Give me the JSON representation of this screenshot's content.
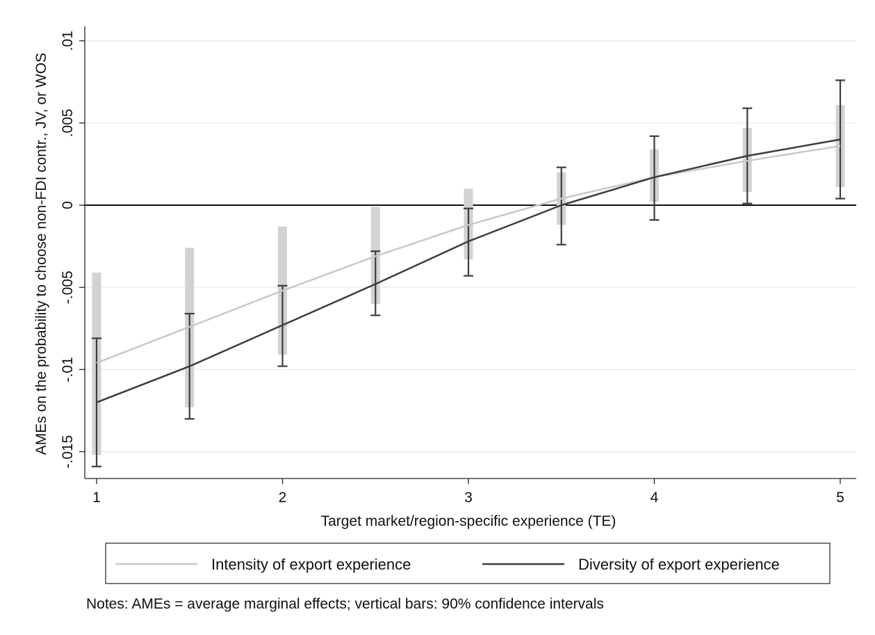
{
  "chart_data": {
    "type": "line",
    "xlabel": "Target market/region-specific experience (TE)",
    "ylabel": "AMEs on the probability to choose non-FDI contr., JV, or WOS",
    "x": [
      1,
      1.5,
      2,
      2.5,
      3,
      3.5,
      4,
      4.5,
      5
    ],
    "xticks": [
      1,
      2,
      3,
      4,
      5
    ],
    "xtick_labels": [
      "1",
      "2",
      "3",
      "4",
      "5"
    ],
    "xlim": [
      1,
      5
    ],
    "yticks": [
      -0.015,
      -0.01,
      -0.005,
      0,
      0.005,
      0.01
    ],
    "ytick_labels": [
      "-.015",
      "-.01",
      "-.005",
      "0",
      ".005",
      ".01"
    ],
    "ylim": [
      -0.0165,
      0.0108
    ],
    "grid": true,
    "reference_line_y": 0,
    "legend_position": "bottom",
    "series": [
      {
        "name": "Intensity of export experience",
        "color": "#c8c8c8",
        "ci_style": "shaded-bar",
        "values": [
          -0.0096,
          -0.0074,
          -0.0052,
          -0.0031,
          -0.0012,
          0.0004,
          0.0017,
          0.0027,
          0.0036
        ],
        "ci_low": [
          -0.0152,
          -0.0123,
          -0.0091,
          -0.006,
          -0.0033,
          -0.0012,
          0.0002,
          0.0008,
          0.0011
        ],
        "ci_high": [
          -0.0041,
          -0.0026,
          -0.0013,
          -0.0001,
          0.001,
          0.002,
          0.0034,
          0.0047,
          0.0061
        ]
      },
      {
        "name": "Diversity of export experience",
        "color": "#3c3c3c",
        "ci_style": "capped-line",
        "values": [
          -0.012,
          -0.0098,
          -0.0073,
          -0.0048,
          -0.0022,
          0,
          0.0017,
          0.003,
          0.004
        ],
        "ci_low": [
          -0.0159,
          -0.013,
          -0.0098,
          -0.0067,
          -0.0043,
          -0.0024,
          -0.0009,
          0.0001,
          0.0004
        ],
        "ci_high": [
          -0.0081,
          -0.0066,
          -0.0049,
          -0.0028,
          -0.0002,
          0.0023,
          0.0042,
          0.0059,
          0.0076
        ]
      }
    ]
  },
  "notes": "Notes: AMEs = average marginal effects; vertical bars: 90% confidence intervals"
}
